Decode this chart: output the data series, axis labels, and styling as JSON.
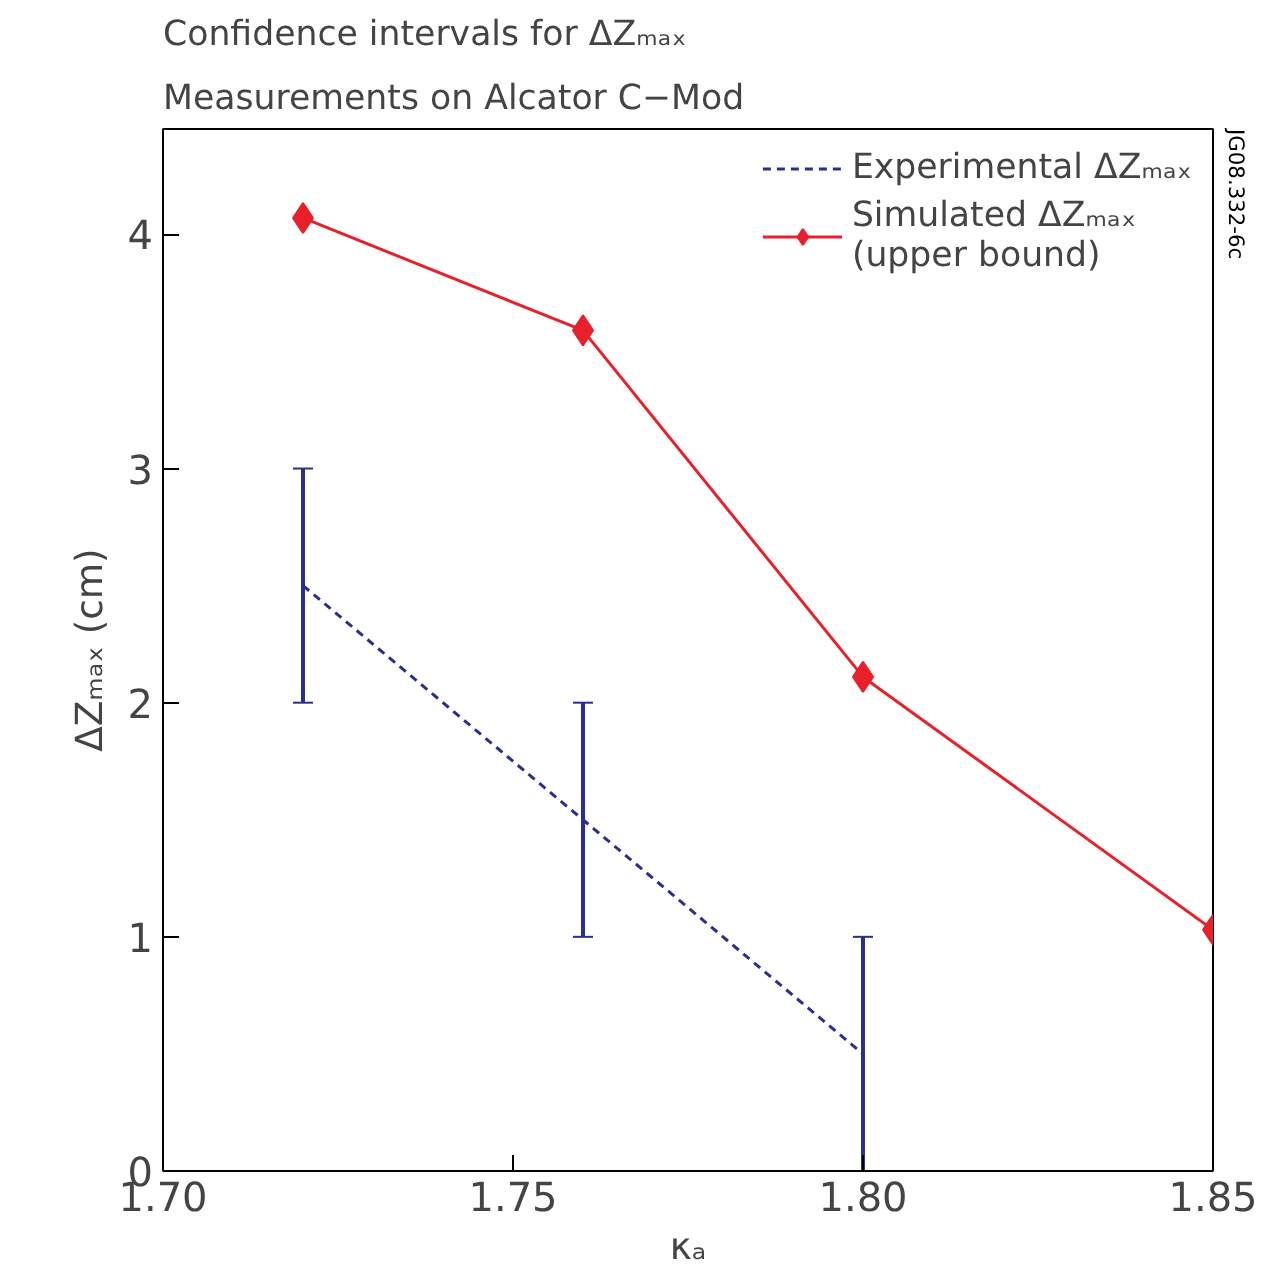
{
  "chart_data": {
    "type": "line",
    "title": "Confidence intervals for ΔZₘₐₓ",
    "subtitle": "Measurements on Alcator C−Mod",
    "xlabel": "κₐ",
    "ylabel": "ΔZₘₐₓ (cm)",
    "xlim": [
      1.7,
      1.85
    ],
    "xticks": [
      {
        "value": 1.7,
        "label": "1.70"
      },
      {
        "value": 1.75,
        "label": "1.75"
      },
      {
        "value": 1.8,
        "label": "1.80"
      },
      {
        "value": 1.85,
        "label": "1.85"
      }
    ],
    "ylim": [
      0,
      4.45
    ],
    "yticks": [
      0,
      1,
      2,
      3,
      4
    ],
    "grid": false,
    "legend": "top right",
    "series": [
      {
        "name": "Experimental ΔZₘₐₓ",
        "color": "#2b2e8f",
        "x": [
          1.72,
          1.76,
          1.8
        ],
        "values": [
          2.5,
          1.5,
          0.5
        ],
        "errors": [
          [
            2,
            3
          ],
          [
            1,
            2
          ],
          [
            0,
            1
          ]
        ],
        "line_style": "dashed",
        "marker": "none"
      },
      {
        "name": "Simulated ΔZₘₐₓ\n(upper bound)",
        "color": "#e8202a",
        "x": [
          1.72,
          1.76,
          1.8,
          1.85
        ],
        "values": [
          4.07,
          3.59,
          2.11,
          1.03
        ],
        "line_style": "solid",
        "marker": "diamond"
      }
    ],
    "annotations": [
      "JG08.332-6c"
    ]
  }
}
